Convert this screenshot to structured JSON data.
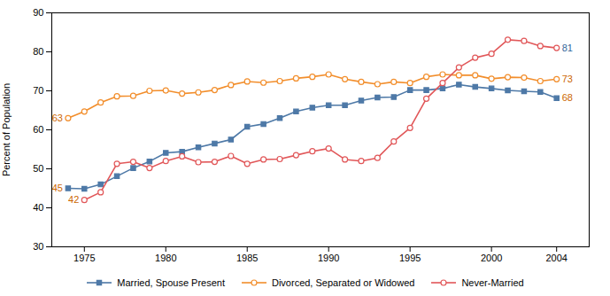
{
  "chart_data": {
    "type": "line",
    "ylabel": "Percent of Population",
    "xlim": [
      1973,
      2006
    ],
    "xticks": [
      1975,
      1980,
      1985,
      1990,
      1995,
      2000,
      2004
    ],
    "ylim": [
      30,
      90
    ],
    "yticks": [
      30,
      40,
      50,
      60,
      70,
      80,
      90
    ],
    "grid": false,
    "legend": "bottom",
    "series": [
      {
        "name": "Married, Spouse Present",
        "marker": "square",
        "line_style": "solid",
        "x": [
          1974,
          1975,
          1976,
          1977,
          1978,
          1979,
          1980,
          1981,
          1982,
          1983,
          1984,
          1985,
          1986,
          1987,
          1988,
          1989,
          1990,
          1991,
          1992,
          1993,
          1994,
          1995,
          1996,
          1997,
          1998,
          1999,
          2000,
          2001,
          2002,
          2003,
          2004
        ],
        "values": [
          45.0,
          44.9,
          46.0,
          48.1,
          50.2,
          51.9,
          54.1,
          54.4,
          55.5,
          56.5,
          57.5,
          60.8,
          61.5,
          63.0,
          64.7,
          65.7,
          66.3,
          66.3,
          67.5,
          68.3,
          68.4,
          70.2,
          70.2,
          70.6,
          71.6,
          71.0,
          70.6,
          70.1,
          69.9,
          69.7,
          68.1
        ]
      },
      {
        "name": "Divorced, Separated or Widowed",
        "marker": "circle",
        "line_style": "solid",
        "x": [
          1974,
          1975,
          1976,
          1977,
          1978,
          1979,
          1980,
          1981,
          1982,
          1983,
          1984,
          1985,
          1986,
          1987,
          1988,
          1989,
          1990,
          1991,
          1992,
          1993,
          1994,
          1995,
          1996,
          1997,
          1998,
          1999,
          2000,
          2001,
          2002,
          2003,
          2004
        ],
        "values": [
          63.0,
          64.7,
          67.0,
          68.6,
          68.7,
          70.0,
          70.1,
          69.3,
          69.6,
          70.2,
          71.5,
          72.4,
          72.1,
          72.5,
          73.2,
          73.6,
          74.2,
          73.0,
          72.3,
          71.7,
          72.3,
          72.0,
          73.6,
          74.2,
          74.0,
          74.0,
          73.1,
          73.5,
          73.4,
          72.5,
          73.0
        ]
      },
      {
        "name": "Never-Married",
        "marker": "circle",
        "line_style": "solid",
        "x": [
          1975,
          1976,
          1977,
          1978,
          1979,
          1980,
          1981,
          1982,
          1983,
          1984,
          1985,
          1986,
          1987,
          1988,
          1989,
          1990,
          1991,
          1992,
          1993,
          1994,
          1995,
          1996,
          1997,
          1998,
          1999,
          2000,
          2001,
          2002,
          2003,
          2004
        ],
        "values": [
          42.0,
          44.0,
          51.3,
          51.8,
          50.2,
          52.0,
          53.2,
          51.7,
          51.8,
          53.3,
          51.3,
          52.4,
          52.5,
          53.5,
          54.5,
          55.2,
          52.4,
          52.0,
          52.8,
          57.0,
          60.5,
          68.0,
          72.0,
          76.0,
          78.5,
          79.5,
          83.1,
          82.8,
          81.5,
          81.0
        ]
      }
    ],
    "annotations": [
      {
        "text": "45",
        "x": 1974,
        "y": 45.0,
        "color": "#cc6600"
      },
      {
        "text": "63",
        "x": 1974,
        "y": 63.0,
        "color": "#cc6600"
      },
      {
        "text": "42",
        "x": 1975,
        "y": 42.0,
        "color": "#cc6600"
      },
      {
        "text": "68",
        "x": 2004,
        "y": 68.1,
        "color": "#cc6600"
      },
      {
        "text": "73",
        "x": 2004,
        "y": 73.0,
        "color": "#cc6600"
      },
      {
        "text": "81",
        "x": 2004,
        "y": 81.0,
        "color": "#336699"
      }
    ]
  }
}
